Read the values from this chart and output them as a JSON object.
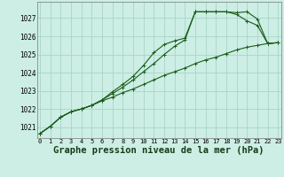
{
  "background_color": "#cceee4",
  "grid_color": "#aad4c8",
  "line_color": "#1a5c1a",
  "xlabel": "Graphe pression niveau de la mer (hPa)",
  "xlabel_fontsize": 7.5,
  "ylabel_ticks": [
    1021,
    1022,
    1023,
    1024,
    1025,
    1026,
    1027
  ],
  "xticks": [
    0,
    1,
    2,
    3,
    4,
    5,
    6,
    7,
    8,
    9,
    10,
    11,
    12,
    13,
    14,
    15,
    16,
    17,
    18,
    19,
    20,
    21,
    22,
    23
  ],
  "ylim": [
    1020.4,
    1027.9
  ],
  "xlim": [
    -0.3,
    23.3
  ],
  "series": [
    [
      1020.65,
      1021.05,
      1021.55,
      1021.85,
      1022.0,
      1022.2,
      1022.45,
      1022.65,
      1022.9,
      1023.1,
      1023.35,
      1023.6,
      1023.85,
      1024.05,
      1024.25,
      1024.5,
      1024.7,
      1024.85,
      1025.05,
      1025.25,
      1025.4,
      1025.5,
      1025.6,
      1025.65
    ],
    [
      1020.65,
      1021.05,
      1021.55,
      1021.85,
      1022.0,
      1022.2,
      1022.5,
      1022.85,
      1023.2,
      1023.6,
      1024.05,
      1024.5,
      1025.0,
      1025.45,
      1025.8,
      1027.35,
      1027.35,
      1027.35,
      1027.35,
      1027.2,
      1026.85,
      1026.6,
      1025.6,
      1025.65
    ],
    [
      1020.65,
      1021.05,
      1021.55,
      1021.85,
      1022.0,
      1022.2,
      1022.5,
      1022.95,
      1023.35,
      1023.8,
      1024.4,
      1025.1,
      1025.55,
      1025.75,
      1025.9,
      1027.35,
      1027.35,
      1027.35,
      1027.35,
      1027.3,
      1027.35,
      1026.95,
      1025.6,
      1025.65
    ]
  ]
}
